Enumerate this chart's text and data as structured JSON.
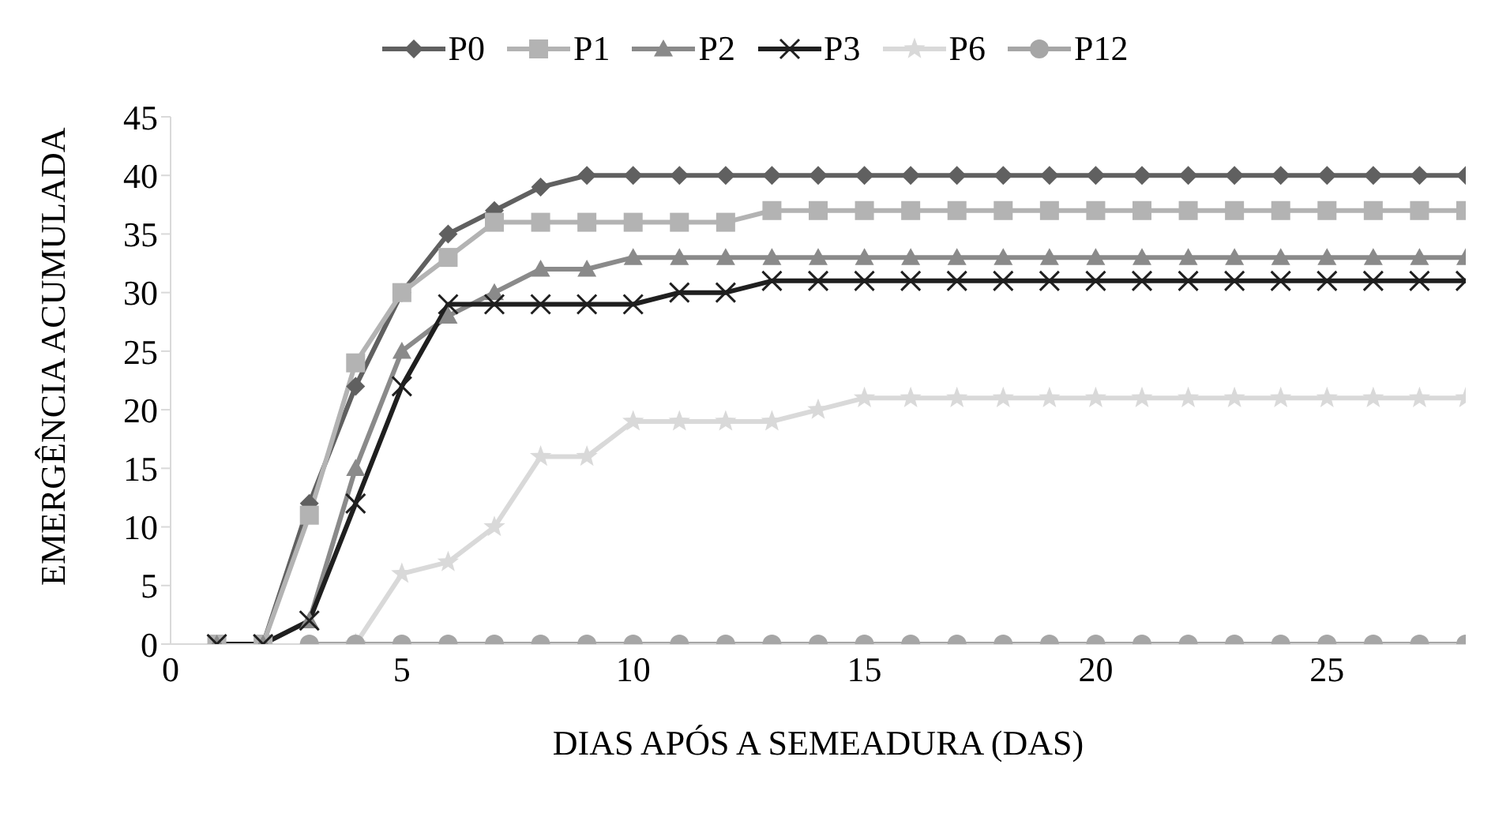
{
  "chart_data": {
    "type": "line",
    "xlabel": "DIAS APÓS A SEMEADURA (DAS)",
    "ylabel": "EMERGÊNCIA ACUMULADA",
    "x": [
      1,
      2,
      3,
      4,
      5,
      6,
      7,
      8,
      9,
      10,
      11,
      12,
      13,
      14,
      15,
      16,
      17,
      18,
      19,
      20,
      21,
      22,
      23,
      24,
      25,
      26,
      27,
      28
    ],
    "xlim": [
      0,
      28
    ],
    "xticks": [
      0,
      5,
      10,
      15,
      20,
      25
    ],
    "ylim": [
      0,
      45
    ],
    "yticks": [
      0,
      5,
      10,
      15,
      20,
      25,
      30,
      35,
      40,
      45
    ],
    "grid": false,
    "legend": "top",
    "series": [
      {
        "name": "P0",
        "color": "#606060",
        "marker": "diamond",
        "values": [
          0,
          0,
          12,
          22,
          30,
          35,
          37,
          39,
          40,
          40,
          40,
          40,
          40,
          40,
          40,
          40,
          40,
          40,
          40,
          40,
          40,
          40,
          40,
          40,
          40,
          40,
          40,
          40
        ]
      },
      {
        "name": "P1",
        "color": "#b3b3b3",
        "marker": "square",
        "values": [
          0,
          0,
          11,
          24,
          30,
          33,
          36,
          36,
          36,
          36,
          36,
          36,
          37,
          37,
          37,
          37,
          37,
          37,
          37,
          37,
          37,
          37,
          37,
          37,
          37,
          37,
          37,
          37
        ]
      },
      {
        "name": "P2",
        "color": "#8a8a8a",
        "marker": "triangle",
        "values": [
          0,
          0,
          2,
          15,
          25,
          28,
          30,
          32,
          32,
          33,
          33,
          33,
          33,
          33,
          33,
          33,
          33,
          33,
          33,
          33,
          33,
          33,
          33,
          33,
          33,
          33,
          33,
          33
        ]
      },
      {
        "name": "P3",
        "color": "#1f1f1f",
        "marker": "cross",
        "values": [
          0,
          0,
          2,
          12,
          22,
          29,
          29,
          29,
          29,
          29,
          30,
          30,
          31,
          31,
          31,
          31,
          31,
          31,
          31,
          31,
          31,
          31,
          31,
          31,
          31,
          31,
          31,
          31
        ]
      },
      {
        "name": "P6",
        "color": "#d9d9d9",
        "marker": "star",
        "values": [
          null,
          null,
          null,
          0,
          6,
          7,
          10,
          16,
          16,
          19,
          19,
          19,
          19,
          20,
          21,
          21,
          21,
          21,
          21,
          21,
          21,
          21,
          21,
          21,
          21,
          21,
          21,
          21
        ]
      },
      {
        "name": "P12",
        "color": "#a6a6a6",
        "marker": "circle",
        "values": [
          null,
          null,
          0,
          0,
          0,
          0,
          0,
          0,
          0,
          0,
          0,
          0,
          0,
          0,
          0,
          0,
          0,
          0,
          0,
          0,
          0,
          0,
          0,
          0,
          0,
          0,
          0,
          0
        ]
      }
    ]
  }
}
